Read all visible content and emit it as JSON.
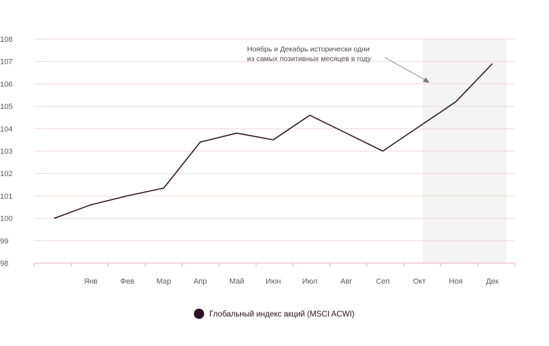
{
  "chart_data": {
    "type": "line",
    "categories": [
      "",
      "Янв",
      "Фев",
      "Мар",
      "Апр",
      "Май",
      "Июн",
      "Июл",
      "Авг",
      "Сеп",
      "Окт",
      "Ноя",
      "Дек"
    ],
    "series": [
      {
        "name": "Глобальный индекс акций (MSCI ACWI)",
        "values": [
          100.0,
          100.6,
          101.0,
          101.35,
          103.4,
          103.8,
          103.5,
          104.6,
          103.8,
          103.0,
          104.1,
          105.2,
          106.9
        ]
      }
    ],
    "yticks": [
      "98",
      "99",
      "100",
      "101",
      "102",
      "103",
      "104",
      "105",
      "106",
      "107",
      "108"
    ],
    "ylim": [
      98,
      108
    ],
    "xlabel": "",
    "ylabel": "",
    "grid": true,
    "highlight_from_index": 10,
    "annotation": {
      "line1": "Ноябрь и Декабрь исторически одни",
      "line2": "из самых позитивных месяцев в году"
    },
    "legend_position": "bottom-center",
    "colors": {
      "line": "#2b0f24",
      "grid": "#f2d5d8",
      "axis": "#e8aab0",
      "highlight": "#f4f4f4",
      "legend_marker": "#2b0f24"
    }
  }
}
